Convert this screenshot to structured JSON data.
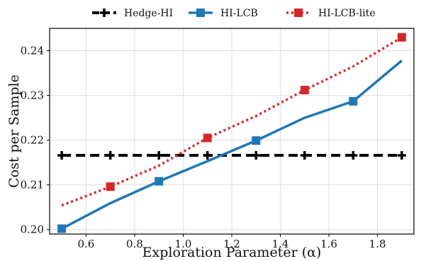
{
  "chart_data": {
    "type": "line",
    "title": "",
    "xlabel": "Exploration Parameter (α)",
    "ylabel": "Cost per Sample",
    "xlim": [
      0.45,
      1.95
    ],
    "ylim": [
      0.199,
      0.245
    ],
    "xticks": [
      "0.6",
      "0.8",
      "1.0",
      "1.2",
      "1.4",
      "1.6",
      "1.8"
    ],
    "yticks": [
      "0.20",
      "0.21",
      "0.22",
      "0.23",
      "0.24"
    ],
    "grid": true,
    "legend_position": "top-center",
    "series": [
      {
        "name": "Hedge-HI",
        "color": "#000000",
        "line_style": "dashed",
        "marker": "plus",
        "x": [
          0.5,
          0.7,
          0.9,
          1.1,
          1.3,
          1.5,
          1.7,
          1.9
        ],
        "y": [
          0.2166,
          0.2166,
          0.2166,
          0.2166,
          0.2166,
          0.2166,
          0.2166,
          0.2166
        ],
        "marker_x": [
          0.5,
          0.7,
          0.9,
          1.1,
          1.3,
          1.5,
          1.7,
          1.9
        ]
      },
      {
        "name": "HI-LCB",
        "color": "#1f77b4",
        "line_style": "solid",
        "marker": "square",
        "x": [
          0.5,
          0.7,
          0.9,
          1.1,
          1.3,
          1.5,
          1.7,
          1.9
        ],
        "y": [
          0.2002,
          0.2059,
          0.2108,
          0.2153,
          0.2199,
          0.225,
          0.2287,
          0.2378
        ],
        "marker_x": [
          0.5,
          0.9,
          1.3,
          1.7
        ]
      },
      {
        "name": "HI-LCB-lite",
        "color": "#d62728",
        "line_style": "dotted",
        "marker": "square",
        "x": [
          0.5,
          0.7,
          0.9,
          1.1,
          1.3,
          1.5,
          1.7,
          1.9
        ],
        "y": [
          0.2054,
          0.2096,
          0.2143,
          0.2205,
          0.2254,
          0.2312,
          0.2365,
          0.243
        ],
        "marker_x": [
          0.7,
          1.1,
          1.5,
          1.9
        ]
      }
    ]
  }
}
